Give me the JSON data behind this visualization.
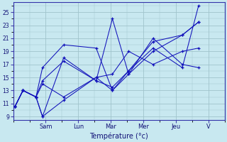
{
  "xlabel": "Température (°c)",
  "bg_color": "#c8e8f0",
  "line_color": "#1111bb",
  "grid_color": "#a0c4cc",
  "ylim": [
    8.5,
    26.5
  ],
  "xlim": [
    0,
    6.5
  ],
  "yticks": [
    9,
    11,
    13,
    15,
    17,
    19,
    21,
    23,
    25
  ],
  "day_labels": [
    "Sam",
    "Lun",
    "Mar",
    "Mer",
    "Jeu",
    "V"
  ],
  "day_positions": [
    1.0,
    2.0,
    3.0,
    4.0,
    5.0,
    6.0
  ],
  "series": [
    {
      "x": [
        0.05,
        0.3,
        0.7,
        0.9,
        1.55,
        2.55,
        3.05,
        3.55,
        4.3,
        5.2,
        5.7
      ],
      "y": [
        10.5,
        13.0,
        12.0,
        9.0,
        11.5,
        15.0,
        13.0,
        15.5,
        19.0,
        21.5,
        23.5
      ]
    },
    {
      "x": [
        0.05,
        0.3,
        0.7,
        0.9,
        1.55,
        2.55,
        3.05,
        3.55,
        4.3,
        5.2,
        5.7
      ],
      "y": [
        10.5,
        13.0,
        12.0,
        9.0,
        18.0,
        14.5,
        24.0,
        15.5,
        21.0,
        17.0,
        16.5
      ]
    },
    {
      "x": [
        0.05,
        0.3,
        0.7,
        0.9,
        1.55,
        2.55,
        3.05,
        3.55,
        4.3,
        5.2,
        5.7
      ],
      "y": [
        10.5,
        13.0,
        12.0,
        16.5,
        20.0,
        19.5,
        13.0,
        16.0,
        20.5,
        21.5,
        23.5
      ]
    },
    {
      "x": [
        0.05,
        0.3,
        0.7,
        0.9,
        1.55,
        2.55,
        3.05,
        3.55,
        4.3,
        5.2,
        5.7
      ],
      "y": [
        10.5,
        13.0,
        12.0,
        14.5,
        17.5,
        14.5,
        13.5,
        16.0,
        19.5,
        16.5,
        26.0
      ]
    },
    {
      "x": [
        0.05,
        0.3,
        0.7,
        0.9,
        1.55,
        2.55,
        3.05,
        3.55,
        4.3,
        5.2,
        5.7
      ],
      "y": [
        10.5,
        13.0,
        12.0,
        14.0,
        12.0,
        15.0,
        15.5,
        19.0,
        17.0,
        19.0,
        19.5
      ]
    }
  ]
}
